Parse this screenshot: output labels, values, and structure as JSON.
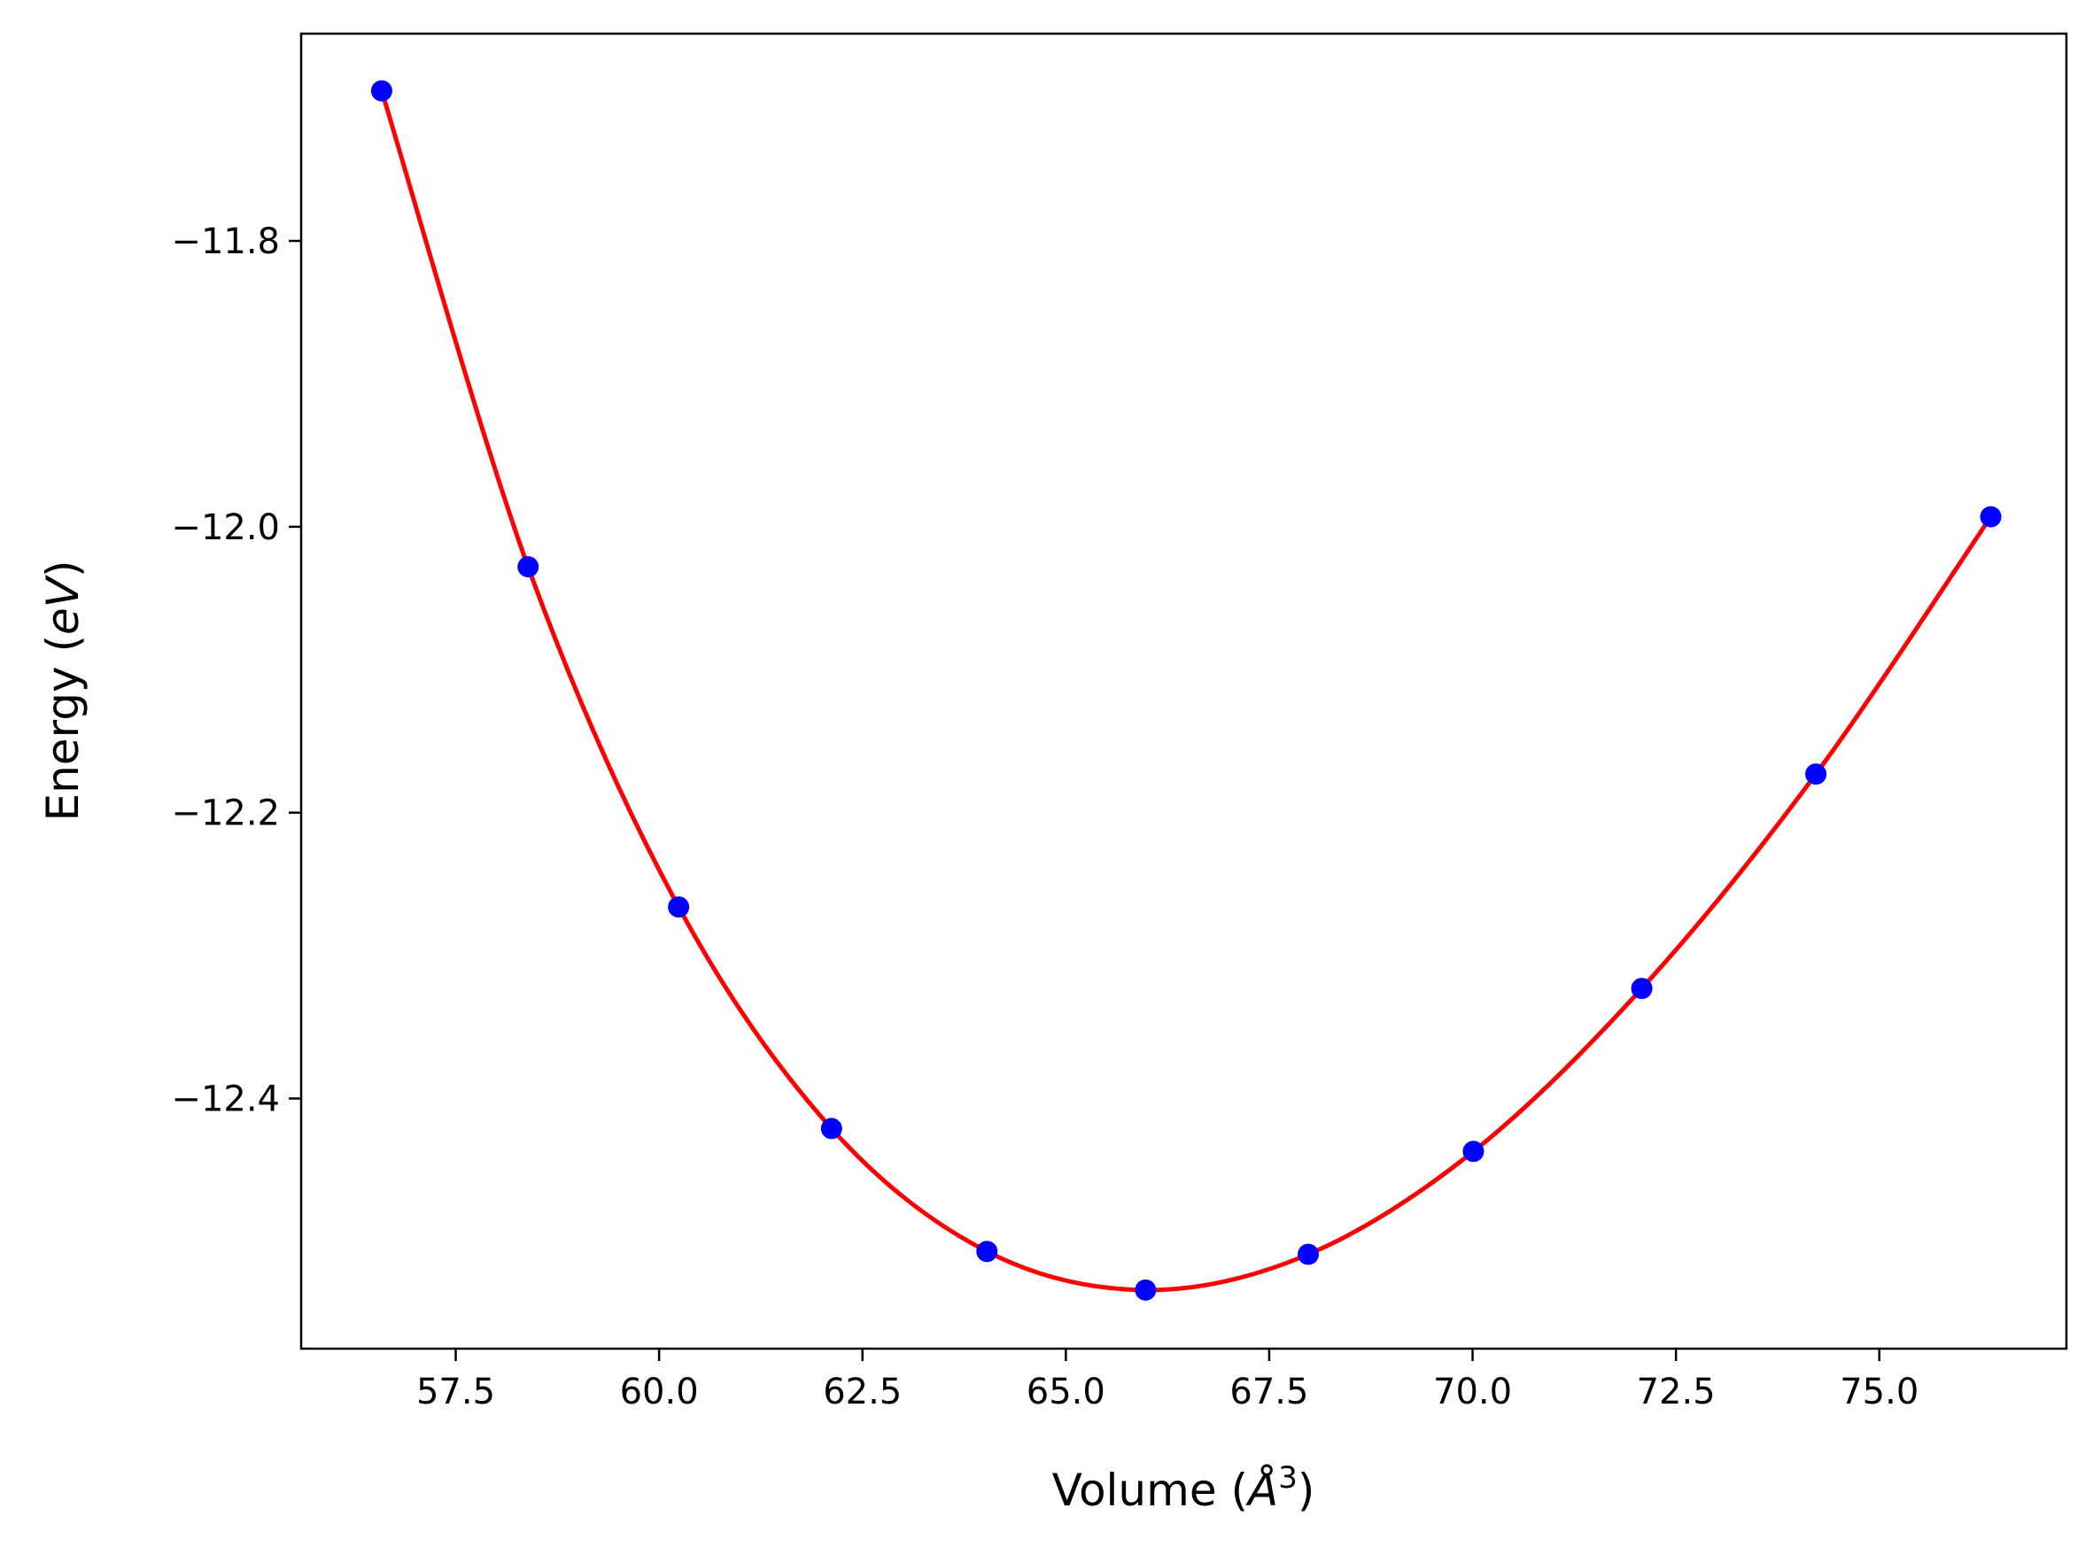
{
  "chart_data": {
    "type": "line",
    "xlabel_text": "Volume (",
    "xlabel_symbol": "Å",
    "xlabel_exp": "3",
    "xlabel_close": ")",
    "ylabel_text": "Energy (",
    "ylabel_unit": "eV",
    "ylabel_close": ")",
    "xlim": [
      55.6,
      77.3
    ],
    "ylim": [
      -12.575,
      -11.655
    ],
    "x_ticks": [
      57.5,
      60.0,
      62.5,
      65.0,
      67.5,
      70.0,
      72.5,
      75.0
    ],
    "x_tick_labels": [
      "57.5",
      "60.0",
      "62.5",
      "65.0",
      "67.5",
      "70.0",
      "72.5",
      "75.0"
    ],
    "y_ticks": [
      -11.8,
      -12.0,
      -12.2,
      -12.4
    ],
    "y_tick_labels": [
      "−11.8",
      "−12.0",
      "−12.2",
      "−12.4"
    ],
    "series": [
      {
        "kind": "scatter",
        "color": "#0000ff",
        "x": [
          56.59,
          58.39,
          60.24,
          62.12,
          64.03,
          65.98,
          67.98,
          70.01,
          72.08,
          74.22,
          76.37
        ],
        "y": [
          -11.695,
          -12.028,
          -12.266,
          -12.421,
          -12.507,
          -12.534,
          -12.509,
          -12.437,
          -12.323,
          -12.173,
          -11.993
        ]
      },
      {
        "kind": "fit",
        "color": "#ff0000"
      }
    ]
  }
}
